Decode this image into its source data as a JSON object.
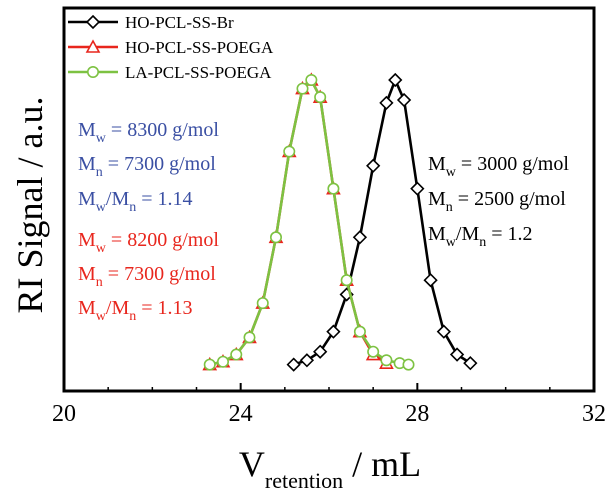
{
  "chart_data": {
    "type": "line",
    "xlabel": "V",
    "xlabel_sub": "retention",
    "xlabel_unit": " / mL",
    "ylabel": "RI Signal / a.u.",
    "xlim": [
      20,
      32
    ],
    "xticks": [
      "20",
      "24",
      "28",
      "32"
    ],
    "ylim": [
      0,
      1
    ],
    "grid": false,
    "legend_position": "top-left",
    "series": [
      {
        "name": "HO-PCL-SS-Br",
        "color": "#000000",
        "marker": "diamond",
        "x": [
          25.2,
          25.5,
          25.8,
          26.1,
          26.4,
          26.7,
          27.0,
          27.3,
          27.5,
          27.7,
          28.0,
          28.3,
          28.6,
          28.9,
          29.2
        ],
        "y": [
          0.005,
          0.02,
          0.05,
          0.12,
          0.25,
          0.45,
          0.7,
          0.92,
          1.0,
          0.93,
          0.62,
          0.3,
          0.12,
          0.04,
          0.01
        ]
      },
      {
        "name": "HO-PCL-SS-POEGA",
        "color": "#e8261d",
        "marker": "triangle",
        "x": [
          23.3,
          23.6,
          23.9,
          24.2,
          24.5,
          24.8,
          25.1,
          25.4,
          25.6,
          25.8,
          26.1,
          26.4,
          26.7,
          27.0,
          27.3
        ],
        "y": [
          0.005,
          0.015,
          0.04,
          0.1,
          0.22,
          0.45,
          0.75,
          0.97,
          1.0,
          0.94,
          0.62,
          0.3,
          0.12,
          0.04,
          0.01
        ]
      },
      {
        "name": "LA-PCL-SS-POEGA",
        "color": "#7dc242",
        "marker": "circle",
        "x": [
          23.3,
          23.6,
          23.9,
          24.2,
          24.5,
          24.8,
          25.1,
          25.4,
          25.6,
          25.8,
          26.1,
          26.4,
          26.7,
          27.0,
          27.3,
          27.6,
          27.8
        ],
        "y": [
          0.005,
          0.015,
          0.04,
          0.1,
          0.22,
          0.45,
          0.75,
          0.97,
          1.0,
          0.94,
          0.62,
          0.3,
          0.12,
          0.05,
          0.02,
          0.01,
          0.005
        ]
      }
    ],
    "annotations": [
      {
        "main": "M",
        "sub": "w",
        "rest": " = 8300 g/mol",
        "color": "#3a4fa3"
      },
      {
        "main": "M",
        "sub": "n",
        "rest": " = 7300 g/mol",
        "color": "#3a4fa3"
      },
      {
        "main": "M",
        "sub": "w",
        "rest": "/M",
        "sub2": "n",
        "rest2": " = 1.14",
        "color": "#3a4fa3"
      },
      {
        "main": "M",
        "sub": "w",
        "rest": " = 8200 g/mol",
        "color": "#e8261d"
      },
      {
        "main": "M",
        "sub": "n",
        "rest": " = 7300 g/mol",
        "color": "#e8261d"
      },
      {
        "main": "M",
        "sub": "w",
        "rest": "/M",
        "sub2": "n",
        "rest2": " = 1.13",
        "color": "#e8261d"
      },
      {
        "main": "M",
        "sub": "w",
        "rest": " = 3000 g/mol",
        "color": "#000000"
      },
      {
        "main": "M",
        "sub": "n",
        "rest": " = 2500 g/mol",
        "color": "#000000"
      },
      {
        "main": "M",
        "sub": "w",
        "rest": "/M",
        "sub2": "n",
        "rest2": " = 1.2",
        "color": "#000000"
      }
    ]
  }
}
